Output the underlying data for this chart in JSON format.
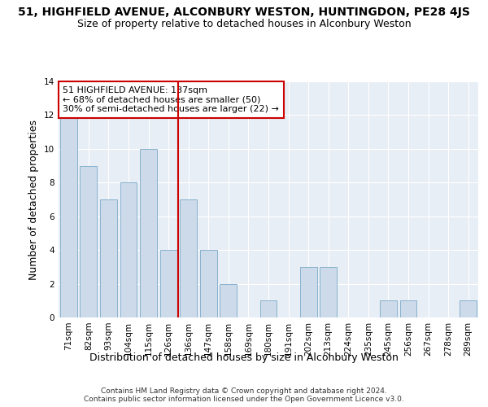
{
  "title": "51, HIGHFIELD AVENUE, ALCONBURY WESTON, HUNTINGDON, PE28 4JS",
  "subtitle": "Size of property relative to detached houses in Alconbury Weston",
  "xlabel": "Distribution of detached houses by size in Alconbury Weston",
  "ylabel": "Number of detached properties",
  "categories": [
    "71sqm",
    "82sqm",
    "93sqm",
    "104sqm",
    "115sqm",
    "126sqm",
    "136sqm",
    "147sqm",
    "158sqm",
    "169sqm",
    "180sqm",
    "191sqm",
    "202sqm",
    "213sqm",
    "224sqm",
    "235sqm",
    "245sqm",
    "256sqm",
    "267sqm",
    "278sqm",
    "289sqm"
  ],
  "values": [
    12,
    9,
    7,
    8,
    10,
    4,
    7,
    4,
    2,
    0,
    1,
    0,
    3,
    3,
    0,
    0,
    1,
    1,
    0,
    0,
    1
  ],
  "bar_color": "#ccdaea",
  "bar_edge_color": "#7baac8",
  "property_line_x": 5.5,
  "property_line_color": "#cc0000",
  "annotation_text": "51 HIGHFIELD AVENUE: 137sqm\n← 68% of detached houses are smaller (50)\n30% of semi-detached houses are larger (22) →",
  "annotation_box_color": "#ffffff",
  "annotation_box_edge_color": "#cc0000",
  "ylim": [
    0,
    14
  ],
  "yticks": [
    0,
    2,
    4,
    6,
    8,
    10,
    12,
    14
  ],
  "background_color": "#e8eef5",
  "footnote": "Contains HM Land Registry data © Crown copyright and database right 2024.\nContains public sector information licensed under the Open Government Licence v3.0.",
  "title_fontsize": 10,
  "subtitle_fontsize": 9,
  "xlabel_fontsize": 9,
  "ylabel_fontsize": 9,
  "tick_fontsize": 7.5,
  "annotation_fontsize": 8,
  "footnote_fontsize": 6.5
}
